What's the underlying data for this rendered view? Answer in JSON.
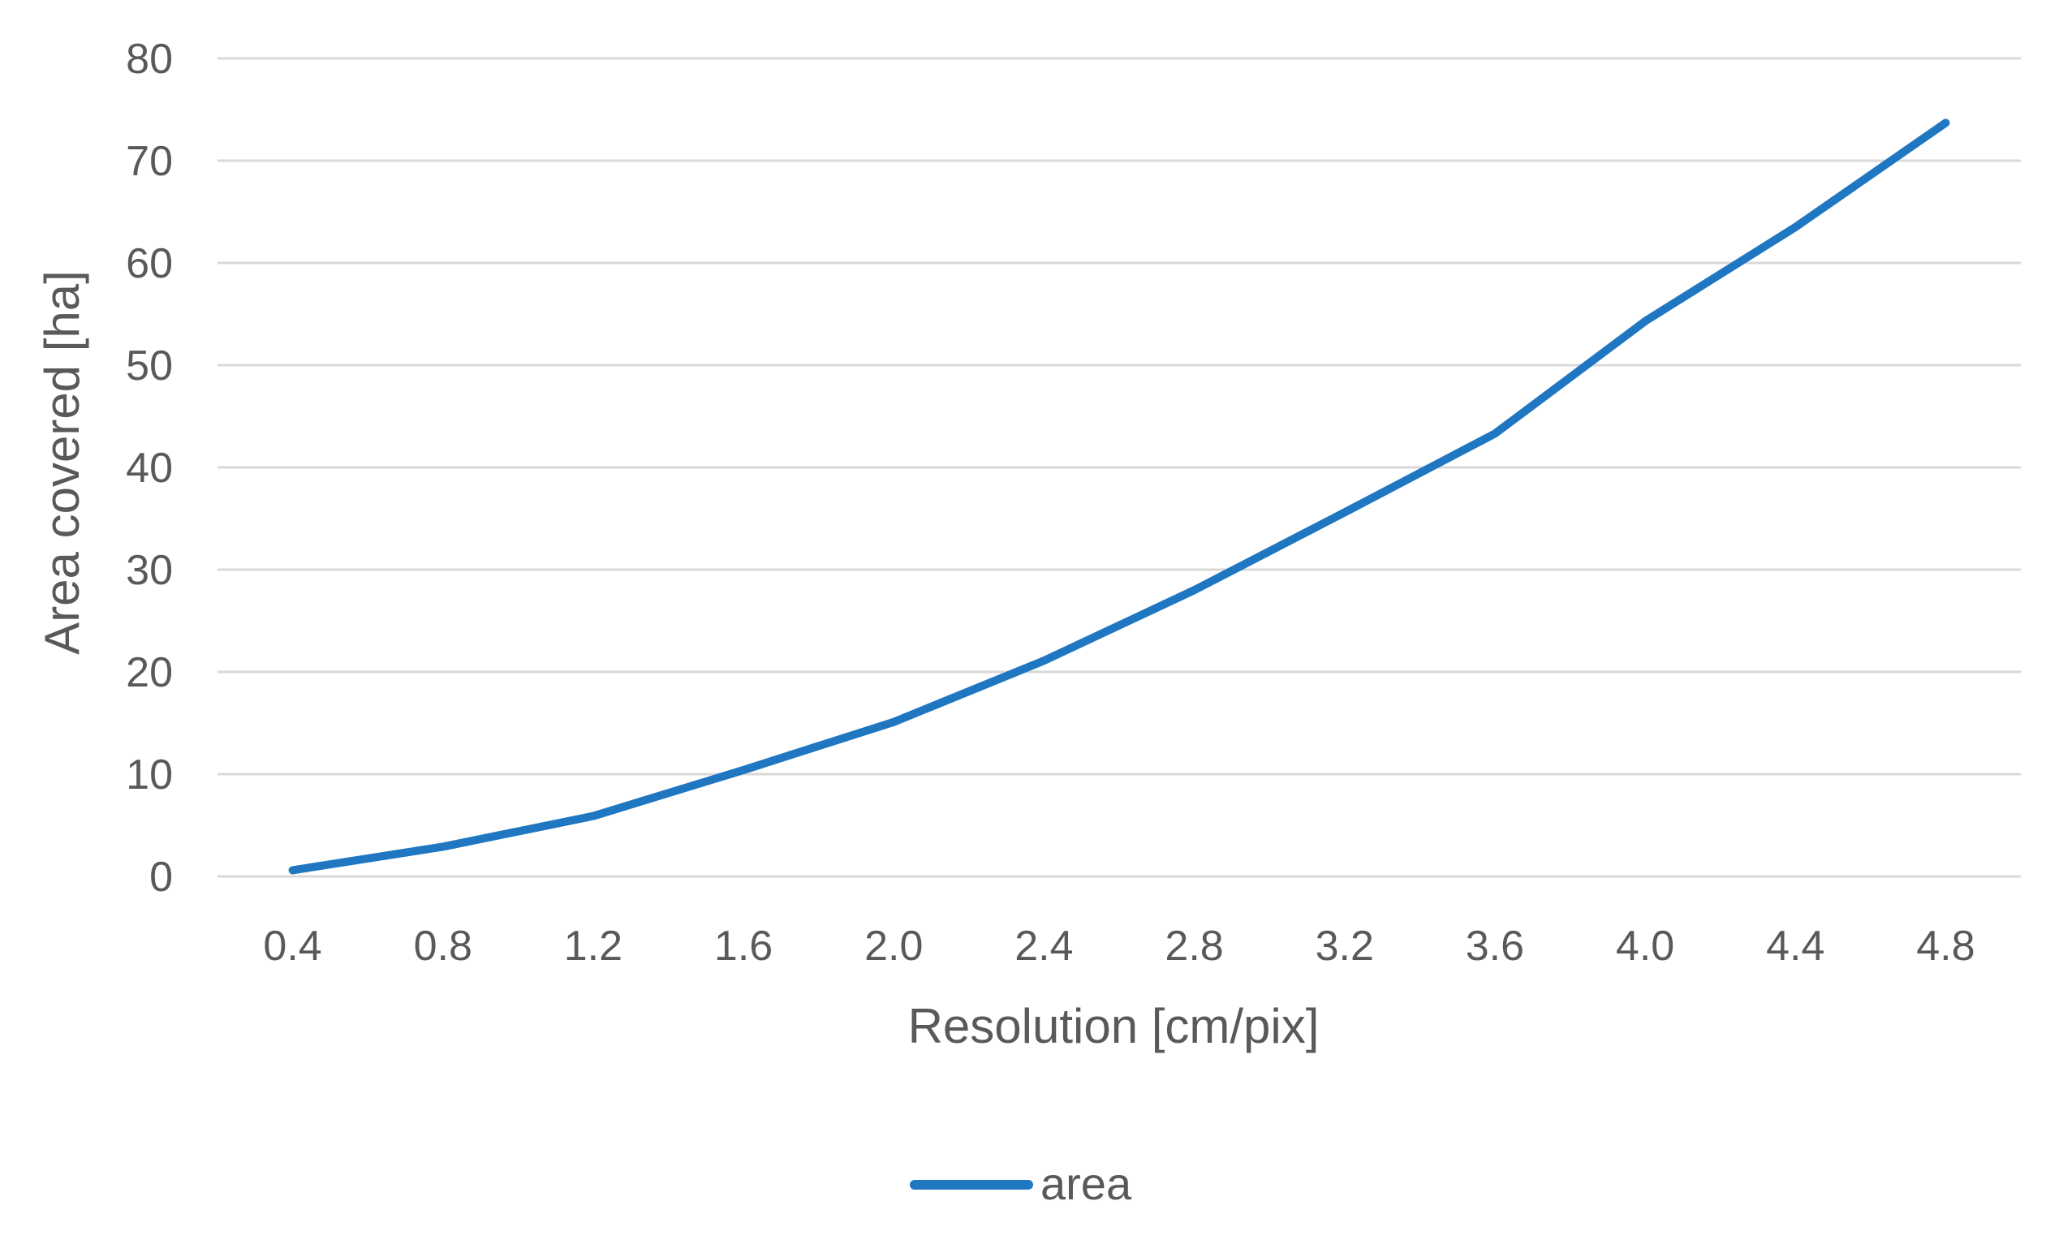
{
  "chart_data": {
    "type": "line",
    "title": "",
    "xlabel": "Resolution [cm/pix]",
    "ylabel": "Area covered  [ha]",
    "categories": [
      "0.4",
      "0.8",
      "1.2",
      "1.6",
      "2.0",
      "2.4",
      "2.8",
      "3.2",
      "3.6",
      "4.0",
      "4.4",
      "4.8"
    ],
    "series": [
      {
        "name": "area",
        "color": "#1f77c2",
        "values": [
          0.6,
          2.9,
          5.9,
          10.4,
          15.1,
          21.1,
          28.0,
          35.6,
          43.3,
          54.3,
          63.5,
          73.7
        ]
      }
    ],
    "ylim": [
      0,
      80
    ],
    "yticks": [
      0,
      10,
      20,
      30,
      40,
      50,
      60,
      70,
      80
    ],
    "grid": "horizontal",
    "legend": "bottom-center"
  }
}
